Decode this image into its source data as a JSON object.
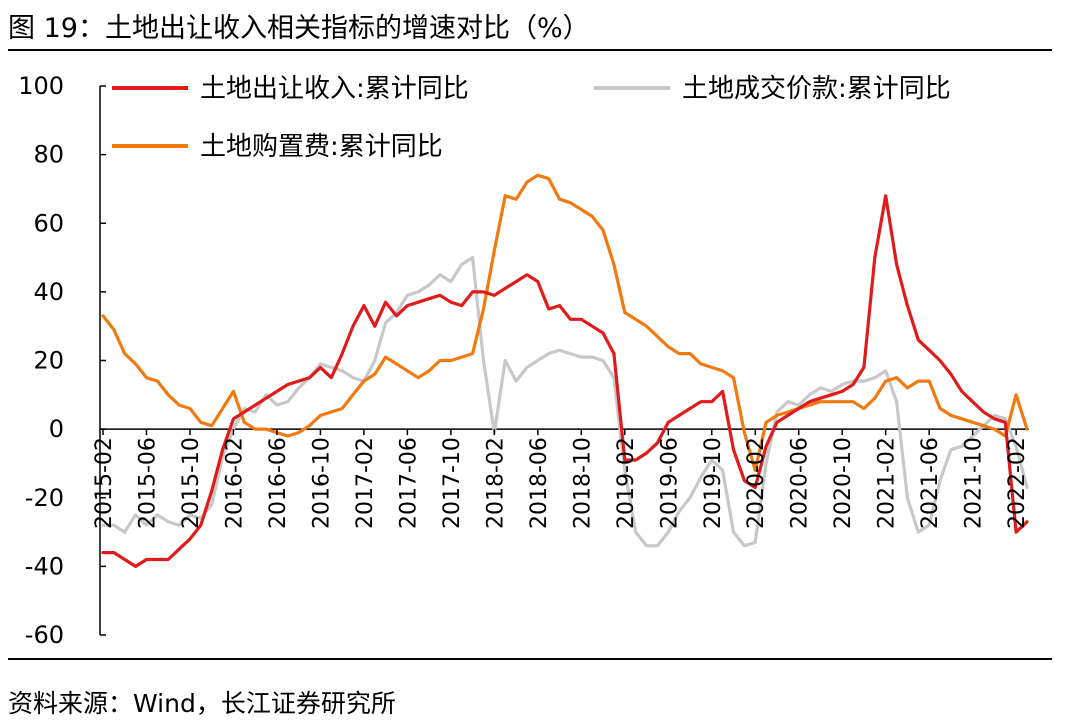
{
  "figure": {
    "title": "图  19：土地出让收入相关指标的增速对比（%）",
    "source": "资料来源：Wind，长江证券研究所"
  },
  "chart_data": {
    "type": "line",
    "title": "土地出让收入相关指标的增速对比（%）",
    "xlabel": "",
    "ylabel": "%",
    "ylim": [
      -60,
      100
    ],
    "yticks": [
      100,
      80,
      60,
      40,
      20,
      0,
      -20,
      -40,
      -60
    ],
    "xlim": [
      0,
      85
    ],
    "xticks": [
      {
        "label": "2015-02",
        "x": 0
      },
      {
        "label": "2015-06",
        "x": 4
      },
      {
        "label": "2015-10",
        "x": 8
      },
      {
        "label": "2016-02",
        "x": 12
      },
      {
        "label": "2016-06",
        "x": 16
      },
      {
        "label": "2016-10",
        "x": 20
      },
      {
        "label": "2017-02",
        "x": 24
      },
      {
        "label": "2017-06",
        "x": 28
      },
      {
        "label": "2017-10",
        "x": 32
      },
      {
        "label": "2018-02",
        "x": 36
      },
      {
        "label": "2018-06",
        "x": 40
      },
      {
        "label": "2018-10",
        "x": 44
      },
      {
        "label": "2019-02",
        "x": 48
      },
      {
        "label": "2019-06",
        "x": 52
      },
      {
        "label": "2019-10",
        "x": 56
      },
      {
        "label": "2020-02",
        "x": 60
      },
      {
        "label": "2020-06",
        "x": 64
      },
      {
        "label": "2020-10",
        "x": 68
      },
      {
        "label": "2021-02",
        "x": 72
      },
      {
        "label": "2021-06",
        "x": 76
      },
      {
        "label": "2021-10",
        "x": 80
      },
      {
        "label": "2022-02",
        "x": 84
      }
    ],
    "x_unit": "months since 2015-02",
    "series": [
      {
        "name": "土地出让收入:累计同比",
        "color": "#E01B1B",
        "points": [
          [
            0,
            -36
          ],
          [
            1,
            -36
          ],
          [
            2,
            -38
          ],
          [
            3,
            -40
          ],
          [
            4,
            -38
          ],
          [
            5,
            -38
          ],
          [
            6,
            -38
          ],
          [
            7,
            -35
          ],
          [
            8,
            -32
          ],
          [
            9,
            -28
          ],
          [
            10,
            -18
          ],
          [
            11,
            -6
          ],
          [
            12,
            3
          ],
          [
            13,
            5
          ],
          [
            14,
            7
          ],
          [
            15,
            9
          ],
          [
            16,
            11
          ],
          [
            17,
            13
          ],
          [
            18,
            14
          ],
          [
            19,
            15
          ],
          [
            20,
            18
          ],
          [
            21,
            15
          ],
          [
            22,
            22
          ],
          [
            23,
            30
          ],
          [
            24,
            36
          ],
          [
            25,
            30
          ],
          [
            26,
            37
          ],
          [
            27,
            33
          ],
          [
            28,
            36
          ],
          [
            29,
            37
          ],
          [
            30,
            38
          ],
          [
            31,
            39
          ],
          [
            32,
            37
          ],
          [
            33,
            36
          ],
          [
            34,
            40
          ],
          [
            35,
            40
          ],
          [
            36,
            39
          ],
          [
            37,
            41
          ],
          [
            38,
            43
          ],
          [
            39,
            45
          ],
          [
            40,
            43
          ],
          [
            41,
            35
          ],
          [
            42,
            36
          ],
          [
            43,
            32
          ],
          [
            44,
            32
          ],
          [
            45,
            30
          ],
          [
            46,
            28
          ],
          [
            47,
            22
          ],
          [
            48,
            -9
          ],
          [
            49,
            -9
          ],
          [
            50,
            -7
          ],
          [
            51,
            -4
          ],
          [
            52,
            2
          ],
          [
            53,
            4
          ],
          [
            54,
            6
          ],
          [
            55,
            8
          ],
          [
            56,
            8
          ],
          [
            57,
            11
          ],
          [
            58,
            -6
          ],
          [
            59,
            -15
          ],
          [
            60,
            -17
          ],
          [
            61,
            -5
          ],
          [
            62,
            2
          ],
          [
            63,
            4
          ],
          [
            64,
            6
          ],
          [
            65,
            8
          ],
          [
            66,
            9
          ],
          [
            67,
            10
          ],
          [
            68,
            11
          ],
          [
            69,
            13
          ],
          [
            70,
            18
          ],
          [
            71,
            50
          ],
          [
            72,
            68
          ],
          [
            73,
            48
          ],
          [
            74,
            36
          ],
          [
            75,
            26
          ],
          [
            76,
            23
          ],
          [
            77,
            20
          ],
          [
            78,
            16
          ],
          [
            79,
            11
          ],
          [
            80,
            8
          ],
          [
            81,
            5
          ],
          [
            82,
            3
          ],
          [
            83,
            2
          ],
          [
            84,
            -30
          ],
          [
            85,
            -27
          ]
        ]
      },
      {
        "name": "土地成交价款:累计同比",
        "color": "#C8C8C8",
        "points": [
          [
            0,
            -28
          ],
          [
            1,
            -28
          ],
          [
            2,
            -30
          ],
          [
            3,
            -25
          ],
          [
            4,
            -28
          ],
          [
            5,
            -25
          ],
          [
            6,
            -27
          ],
          [
            7,
            -28
          ],
          [
            8,
            -25
          ],
          [
            9,
            -26
          ],
          [
            10,
            -22
          ],
          [
            11,
            -8
          ],
          [
            12,
            0
          ],
          [
            13,
            6
          ],
          [
            14,
            5
          ],
          [
            15,
            10
          ],
          [
            16,
            7
          ],
          [
            17,
            8
          ],
          [
            18,
            12
          ],
          [
            19,
            15
          ],
          [
            20,
            19
          ],
          [
            21,
            18
          ],
          [
            22,
            17
          ],
          [
            23,
            15
          ],
          [
            24,
            14
          ],
          [
            25,
            20
          ],
          [
            26,
            31
          ],
          [
            27,
            34
          ],
          [
            28,
            39
          ],
          [
            29,
            40
          ],
          [
            30,
            42
          ],
          [
            31,
            45
          ],
          [
            32,
            43
          ],
          [
            33,
            48
          ],
          [
            34,
            50
          ],
          [
            35,
            20
          ],
          [
            36,
            -1
          ],
          [
            37,
            20
          ],
          [
            38,
            14
          ],
          [
            39,
            18
          ],
          [
            40,
            20
          ],
          [
            41,
            22
          ],
          [
            42,
            23
          ],
          [
            43,
            22
          ],
          [
            44,
            21
          ],
          [
            45,
            21
          ],
          [
            46,
            20
          ],
          [
            47,
            15
          ],
          [
            48,
            -12
          ],
          [
            49,
            -30
          ],
          [
            50,
            -34
          ],
          [
            51,
            -34
          ],
          [
            52,
            -30
          ],
          [
            53,
            -24
          ],
          [
            54,
            -20
          ],
          [
            55,
            -14
          ],
          [
            56,
            -9
          ],
          [
            57,
            -12
          ],
          [
            58,
            -30
          ],
          [
            59,
            -34
          ],
          [
            60,
            -33
          ],
          [
            61,
            -10
          ],
          [
            62,
            5
          ],
          [
            63,
            8
          ],
          [
            64,
            7
          ],
          [
            65,
            10
          ],
          [
            66,
            12
          ],
          [
            67,
            11
          ],
          [
            68,
            13
          ],
          [
            69,
            14
          ],
          [
            70,
            14
          ],
          [
            71,
            15
          ],
          [
            72,
            17
          ],
          [
            73,
            8
          ],
          [
            74,
            -20
          ],
          [
            75,
            -30
          ],
          [
            76,
            -28
          ],
          [
            77,
            -15
          ],
          [
            78,
            -6
          ],
          [
            79,
            -5
          ],
          [
            80,
            -2
          ],
          [
            81,
            1
          ],
          [
            82,
            4
          ],
          [
            83,
            3
          ],
          [
            84,
            -5
          ],
          [
            85,
            -17
          ]
        ]
      },
      {
        "name": "土地购置费:累计同比",
        "color": "#F07A10",
        "points": [
          [
            0,
            33
          ],
          [
            1,
            29
          ],
          [
            2,
            22
          ],
          [
            3,
            19
          ],
          [
            4,
            15
          ],
          [
            5,
            14
          ],
          [
            6,
            10
          ],
          [
            7,
            7
          ],
          [
            8,
            6
          ],
          [
            9,
            2
          ],
          [
            10,
            1
          ],
          [
            11,
            6
          ],
          [
            12,
            11
          ],
          [
            13,
            2
          ],
          [
            14,
            0
          ],
          [
            15,
            0
          ],
          [
            16,
            -1
          ],
          [
            17,
            -2
          ],
          [
            18,
            -1
          ],
          [
            19,
            1
          ],
          [
            20,
            4
          ],
          [
            21,
            5
          ],
          [
            22,
            6
          ],
          [
            23,
            10
          ],
          [
            24,
            14
          ],
          [
            25,
            16
          ],
          [
            26,
            21
          ],
          [
            27,
            19
          ],
          [
            28,
            17
          ],
          [
            29,
            15
          ],
          [
            30,
            17
          ],
          [
            31,
            20
          ],
          [
            32,
            20
          ],
          [
            33,
            21
          ],
          [
            34,
            22
          ],
          [
            35,
            35
          ],
          [
            36,
            52
          ],
          [
            37,
            68
          ],
          [
            38,
            67
          ],
          [
            39,
            72
          ],
          [
            40,
            74
          ],
          [
            41,
            73
          ],
          [
            42,
            67
          ],
          [
            43,
            66
          ],
          [
            44,
            64
          ],
          [
            45,
            62
          ],
          [
            46,
            58
          ],
          [
            47,
            48
          ],
          [
            48,
            34
          ],
          [
            49,
            32
          ],
          [
            50,
            30
          ],
          [
            51,
            27
          ],
          [
            52,
            24
          ],
          [
            53,
            22
          ],
          [
            54,
            22
          ],
          [
            55,
            19
          ],
          [
            56,
            18
          ],
          [
            57,
            17
          ],
          [
            58,
            15
          ],
          [
            59,
            -1
          ],
          [
            60,
            -12
          ],
          [
            61,
            2
          ],
          [
            62,
            4
          ],
          [
            63,
            5
          ],
          [
            64,
            6
          ],
          [
            65,
            7
          ],
          [
            66,
            8
          ],
          [
            67,
            8
          ],
          [
            68,
            8
          ],
          [
            69,
            8
          ],
          [
            70,
            6
          ],
          [
            71,
            9
          ],
          [
            72,
            14
          ],
          [
            73,
            15
          ],
          [
            74,
            12
          ],
          [
            75,
            14
          ],
          [
            76,
            14
          ],
          [
            77,
            6
          ],
          [
            78,
            4
          ],
          [
            79,
            3
          ],
          [
            80,
            2
          ],
          [
            81,
            1
          ],
          [
            82,
            0
          ],
          [
            83,
            -2
          ],
          [
            84,
            10
          ],
          [
            85,
            0
          ]
        ]
      }
    ],
    "legend": [
      "土地出让收入:累计同比",
      "土地成交价款:累计同比",
      "土地购置费:累计同比"
    ],
    "legend_position": "top",
    "grid": false
  }
}
